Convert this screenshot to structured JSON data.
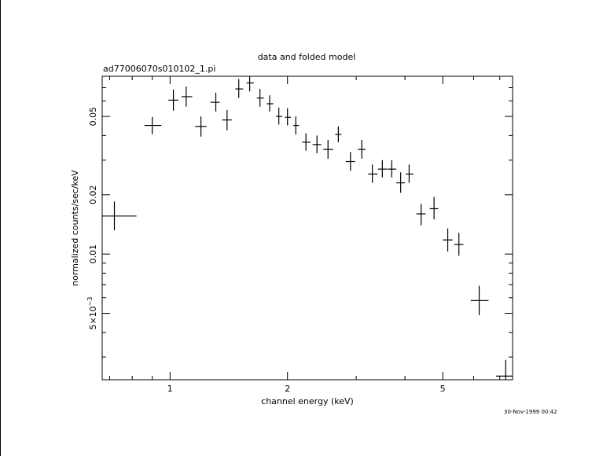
{
  "page": {
    "timestamp": "30-Nov-1999 00:42"
  },
  "chart_data": {
    "type": "scatter",
    "title": "data and folded model",
    "subtitle": "ad77006070s010102_1.pi",
    "xlabel": "channel energy (keV)",
    "ylabel": "normalized counts/sec/keV",
    "xscale": "log",
    "yscale": "log",
    "xlim": [
      0.67,
      7.55
    ],
    "ylim": [
      0.0023,
      0.08
    ],
    "x_ticks": [
      {
        "value": 1,
        "label": "1"
      },
      {
        "value": 2,
        "label": "2"
      },
      {
        "value": 5,
        "label": "5"
      }
    ],
    "y_ticks": [
      {
        "value": 0.05,
        "label": "0.05"
      },
      {
        "value": 0.02,
        "label": "0.02"
      },
      {
        "value": 0.01,
        "label": "0.01"
      },
      {
        "value": 0.005,
        "label": "5×10",
        "exp": "−3"
      }
    ],
    "grid": false,
    "series": [
      {
        "points": [
          {
            "x": 0.72,
            "xerr": [
              0.63,
              0.82
            ],
            "y": 0.0156,
            "yerr": [
              0.0132,
              0.0185
            ]
          },
          {
            "x": 0.9,
            "xerr": [
              0.86,
              0.95
            ],
            "y": 0.045,
            "yerr": [
              0.0406,
              0.0497
            ]
          },
          {
            "x": 1.02,
            "xerr": [
              0.99,
              1.05
            ],
            "y": 0.0605,
            "yerr": [
              0.0535,
              0.0684
            ]
          },
          {
            "x": 1.1,
            "xerr": [
              1.07,
              1.14
            ],
            "y": 0.063,
            "yerr": [
              0.056,
              0.071
            ]
          },
          {
            "x": 1.2,
            "xerr": [
              1.16,
              1.24
            ],
            "y": 0.0445,
            "yerr": [
              0.0395,
              0.05
            ]
          },
          {
            "x": 1.31,
            "xerr": [
              1.27,
              1.34
            ],
            "y": 0.059,
            "yerr": [
              0.053,
              0.066
            ]
          },
          {
            "x": 1.4,
            "xerr": [
              1.36,
              1.44
            ],
            "y": 0.048,
            "yerr": [
              0.0425,
              0.054
            ]
          },
          {
            "x": 1.5,
            "xerr": [
              1.47,
              1.54
            ],
            "y": 0.069,
            "yerr": [
              0.062,
              0.0775
            ]
          },
          {
            "x": 1.6,
            "xerr": [
              1.57,
              1.64
            ],
            "y": 0.074,
            "yerr": [
              0.067,
              0.0815
            ]
          },
          {
            "x": 1.7,
            "xerr": [
              1.67,
              1.74
            ],
            "y": 0.062,
            "yerr": [
              0.056,
              0.069
            ]
          },
          {
            "x": 1.8,
            "xerr": [
              1.77,
              1.84
            ],
            "y": 0.058,
            "yerr": [
              0.053,
              0.064
            ]
          },
          {
            "x": 1.9,
            "xerr": [
              1.87,
              1.94
            ],
            "y": 0.05,
            "yerr": [
              0.0455,
              0.0555
            ]
          },
          {
            "x": 2.0,
            "xerr": [
              1.97,
              2.04
            ],
            "y": 0.0495,
            "yerr": [
              0.045,
              0.055
            ]
          },
          {
            "x": 2.1,
            "xerr": [
              2.07,
              2.14
            ],
            "y": 0.045,
            "yerr": [
              0.0405,
              0.05
            ]
          },
          {
            "x": 2.23,
            "xerr": [
              2.18,
              2.29
            ],
            "y": 0.037,
            "yerr": [
              0.0335,
              0.041
            ]
          },
          {
            "x": 2.38,
            "xerr": [
              2.32,
              2.44
            ],
            "y": 0.036,
            "yerr": [
              0.0325,
              0.04
            ]
          },
          {
            "x": 2.54,
            "xerr": [
              2.47,
              2.62
            ],
            "y": 0.034,
            "yerr": [
              0.0305,
              0.038
            ]
          },
          {
            "x": 2.7,
            "xerr": [
              2.65,
              2.75
            ],
            "y": 0.0405,
            "yerr": [
              0.037,
              0.0445
            ]
          },
          {
            "x": 2.9,
            "xerr": [
              2.82,
              2.98
            ],
            "y": 0.0295,
            "yerr": [
              0.0265,
              0.033
            ]
          },
          {
            "x": 3.1,
            "xerr": [
              3.03,
              3.17
            ],
            "y": 0.034,
            "yerr": [
              0.0305,
              0.038
            ]
          },
          {
            "x": 3.3,
            "xerr": [
              3.22,
              3.4
            ],
            "y": 0.0255,
            "yerr": [
              0.023,
              0.0285
            ]
          },
          {
            "x": 3.5,
            "xerr": [
              3.41,
              3.6
            ],
            "y": 0.027,
            "yerr": [
              0.0245,
              0.03
            ]
          },
          {
            "x": 3.7,
            "xerr": [
              3.61,
              3.8
            ],
            "y": 0.027,
            "yerr": [
              0.0245,
              0.03
            ]
          },
          {
            "x": 3.9,
            "xerr": [
              3.8,
              4.0
            ],
            "y": 0.023,
            "yerr": [
              0.0205,
              0.026
            ]
          },
          {
            "x": 4.1,
            "xerr": [
              4.02,
              4.2
            ],
            "y": 0.0255,
            "yerr": [
              0.023,
              0.0285
            ]
          },
          {
            "x": 4.4,
            "xerr": [
              4.28,
              4.52
            ],
            "y": 0.016,
            "yerr": [
              0.014,
              0.018
            ]
          },
          {
            "x": 4.75,
            "xerr": [
              4.63,
              4.87
            ],
            "y": 0.017,
            "yerr": [
              0.015,
              0.0195
            ]
          },
          {
            "x": 5.15,
            "xerr": [
              5.0,
              5.3
            ],
            "y": 0.0118,
            "yerr": [
              0.0103,
              0.0135
            ]
          },
          {
            "x": 5.5,
            "xerr": [
              5.35,
              5.65
            ],
            "y": 0.0112,
            "yerr": [
              0.0098,
              0.0128
            ]
          },
          {
            "x": 6.2,
            "xerr": [
              5.9,
              6.55
            ],
            "y": 0.0058,
            "yerr": [
              0.0049,
              0.0069
            ]
          },
          {
            "x": 7.25,
            "xerr": [
              6.85,
              7.6
            ],
            "y": 0.0024,
            "yerr": [
              0.002,
              0.0029
            ]
          }
        ]
      }
    ]
  }
}
